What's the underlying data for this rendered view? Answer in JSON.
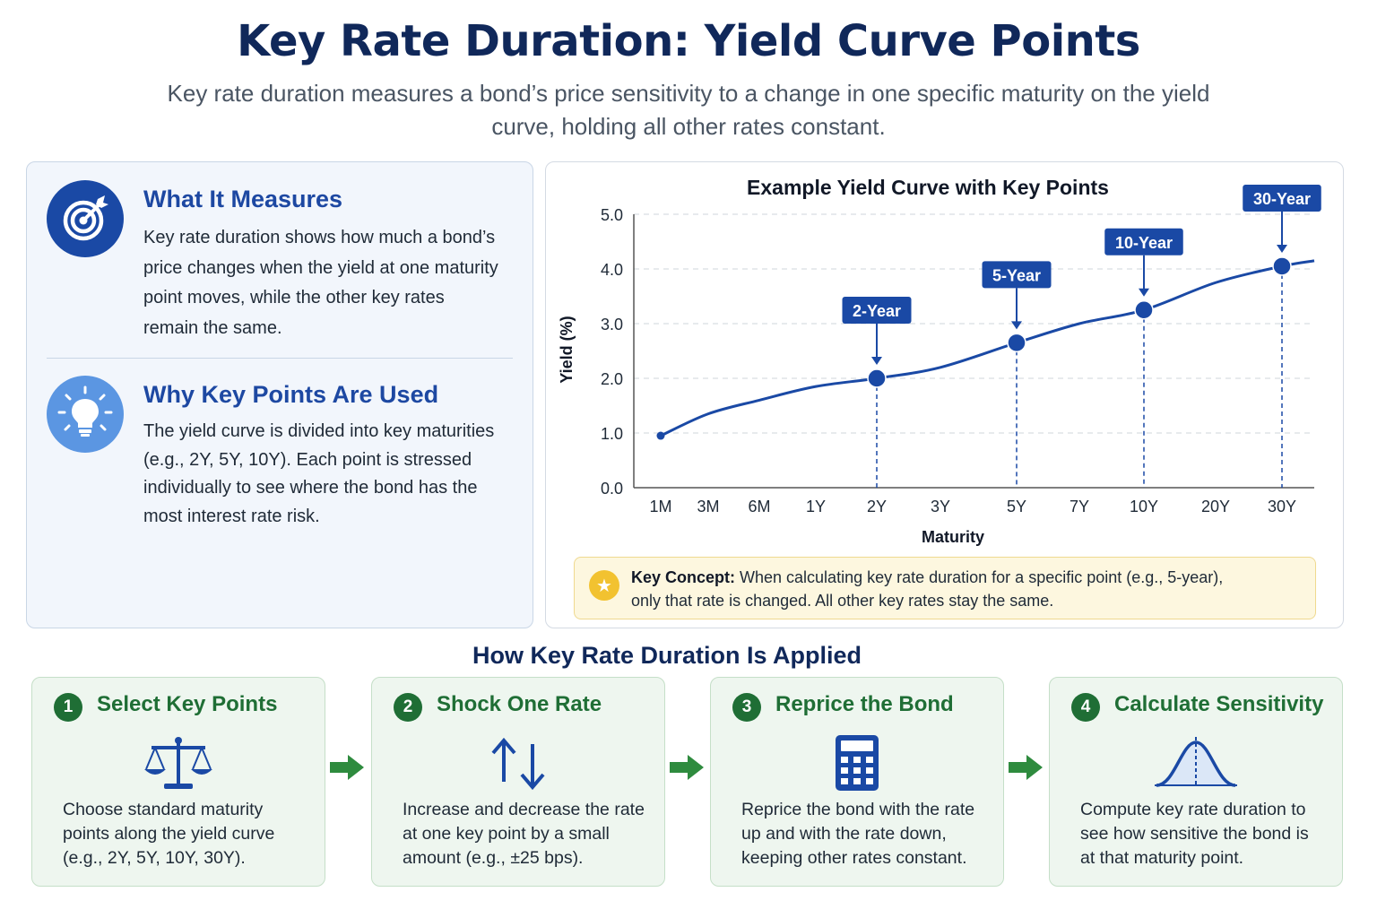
{
  "title": "Key Rate Duration: Yield Curve Points",
  "subtitle": "Key rate duration measures a bond’s price sensitivity to a change in one specific maturity on the yield curve, holding all other rates constant.",
  "what_it_measures": {
    "icon": "target-icon",
    "title": "What It Measures",
    "lines": [
      "Key rate duration shows how much a bond’s",
      "price changes when the yield at one maturity",
      "point moves, while the other key rates",
      "remain the same."
    ]
  },
  "why_key_points": {
    "icon": "lightbulb-icon",
    "title": "Why Key Points Are Used",
    "lines": [
      "The yield curve is divided into key maturities",
      "(e.g., 2Y, 5Y, 10Y). Each point is stressed",
      "individually to see where the bond has the",
      "most interest rate risk."
    ]
  },
  "chart_data": {
    "type": "line",
    "title": "Example Yield Curve with Key Points",
    "xlabel": "Maturity",
    "ylabel": "Yield (%)",
    "ylim": [
      0,
      5
    ],
    "y_ticks": [
      "0.0",
      "1.0",
      "2.0",
      "3.0",
      "4.0",
      "5.0"
    ],
    "categories": [
      "1M",
      "3M",
      "6M",
      "1Y",
      "2Y",
      "3Y",
      "5Y",
      "7Y",
      "10Y",
      "20Y",
      "30Y"
    ],
    "grid": "horizontal dashed",
    "series": [
      {
        "x": [
          "1M",
          "3M",
          "6M",
          "1Y",
          "2Y",
          "3Y",
          "5Y",
          "7Y",
          "10Y",
          "20Y",
          "30Y"
        ],
        "values": [
          0.95,
          1.35,
          1.6,
          1.85,
          2.0,
          2.2,
          2.65,
          3.0,
          3.25,
          3.75,
          4.05
        ]
      }
    ],
    "key_points": [
      {
        "x": "2Y",
        "value": 2.0,
        "label": "2-Year"
      },
      {
        "x": "5Y",
        "value": 2.65,
        "label": "5-Year"
      },
      {
        "x": "10Y",
        "value": 3.25,
        "label": "10-Year"
      },
      {
        "x": "30Y",
        "value": 4.05,
        "label": "30-Year"
      }
    ],
    "colors": {
      "line": "#1a49a5",
      "grid": "#cfd4db",
      "label_bg": "#1a49a5"
    }
  },
  "key_concept": {
    "icon": "star-icon",
    "label": "Key Concept:",
    "text_line1": " When calculating key rate duration for a specific point (e.g., 5-year),",
    "text_line2": "only that rate is changed. All other key rates stay the same."
  },
  "applied_title": "How Key Rate Duration Is Applied",
  "steps": [
    {
      "num": "1",
      "title": "Select Key Points",
      "icon": "scales-icon",
      "lines": [
        "Choose standard maturity",
        "points along the yield curve",
        "(e.g., 2Y, 5Y, 10Y, 30Y)."
      ]
    },
    {
      "num": "2",
      "title": "Shock One Rate",
      "icon": "up-down-arrows-icon",
      "lines": [
        "Increase and decrease the rate",
        "at one key point by a small",
        "amount (e.g., ±25 bps)."
      ]
    },
    {
      "num": "3",
      "title": "Reprice the Bond",
      "icon": "calculator-icon",
      "lines": [
        "Reprice the bond with the rate",
        "up and with the rate down,",
        "keeping other rates constant."
      ]
    },
    {
      "num": "4",
      "title": "Calculate Sensitivity",
      "icon": "bell-curve-icon",
      "lines": [
        "Compute key rate duration to",
        "see how sensitive the bond is",
        "at that maturity point."
      ]
    }
  ],
  "colors": {
    "navy": "#10285a",
    "blue": "#1d48a2",
    "green": "#1f6e35",
    "green_arrow": "#2e8b3e"
  }
}
